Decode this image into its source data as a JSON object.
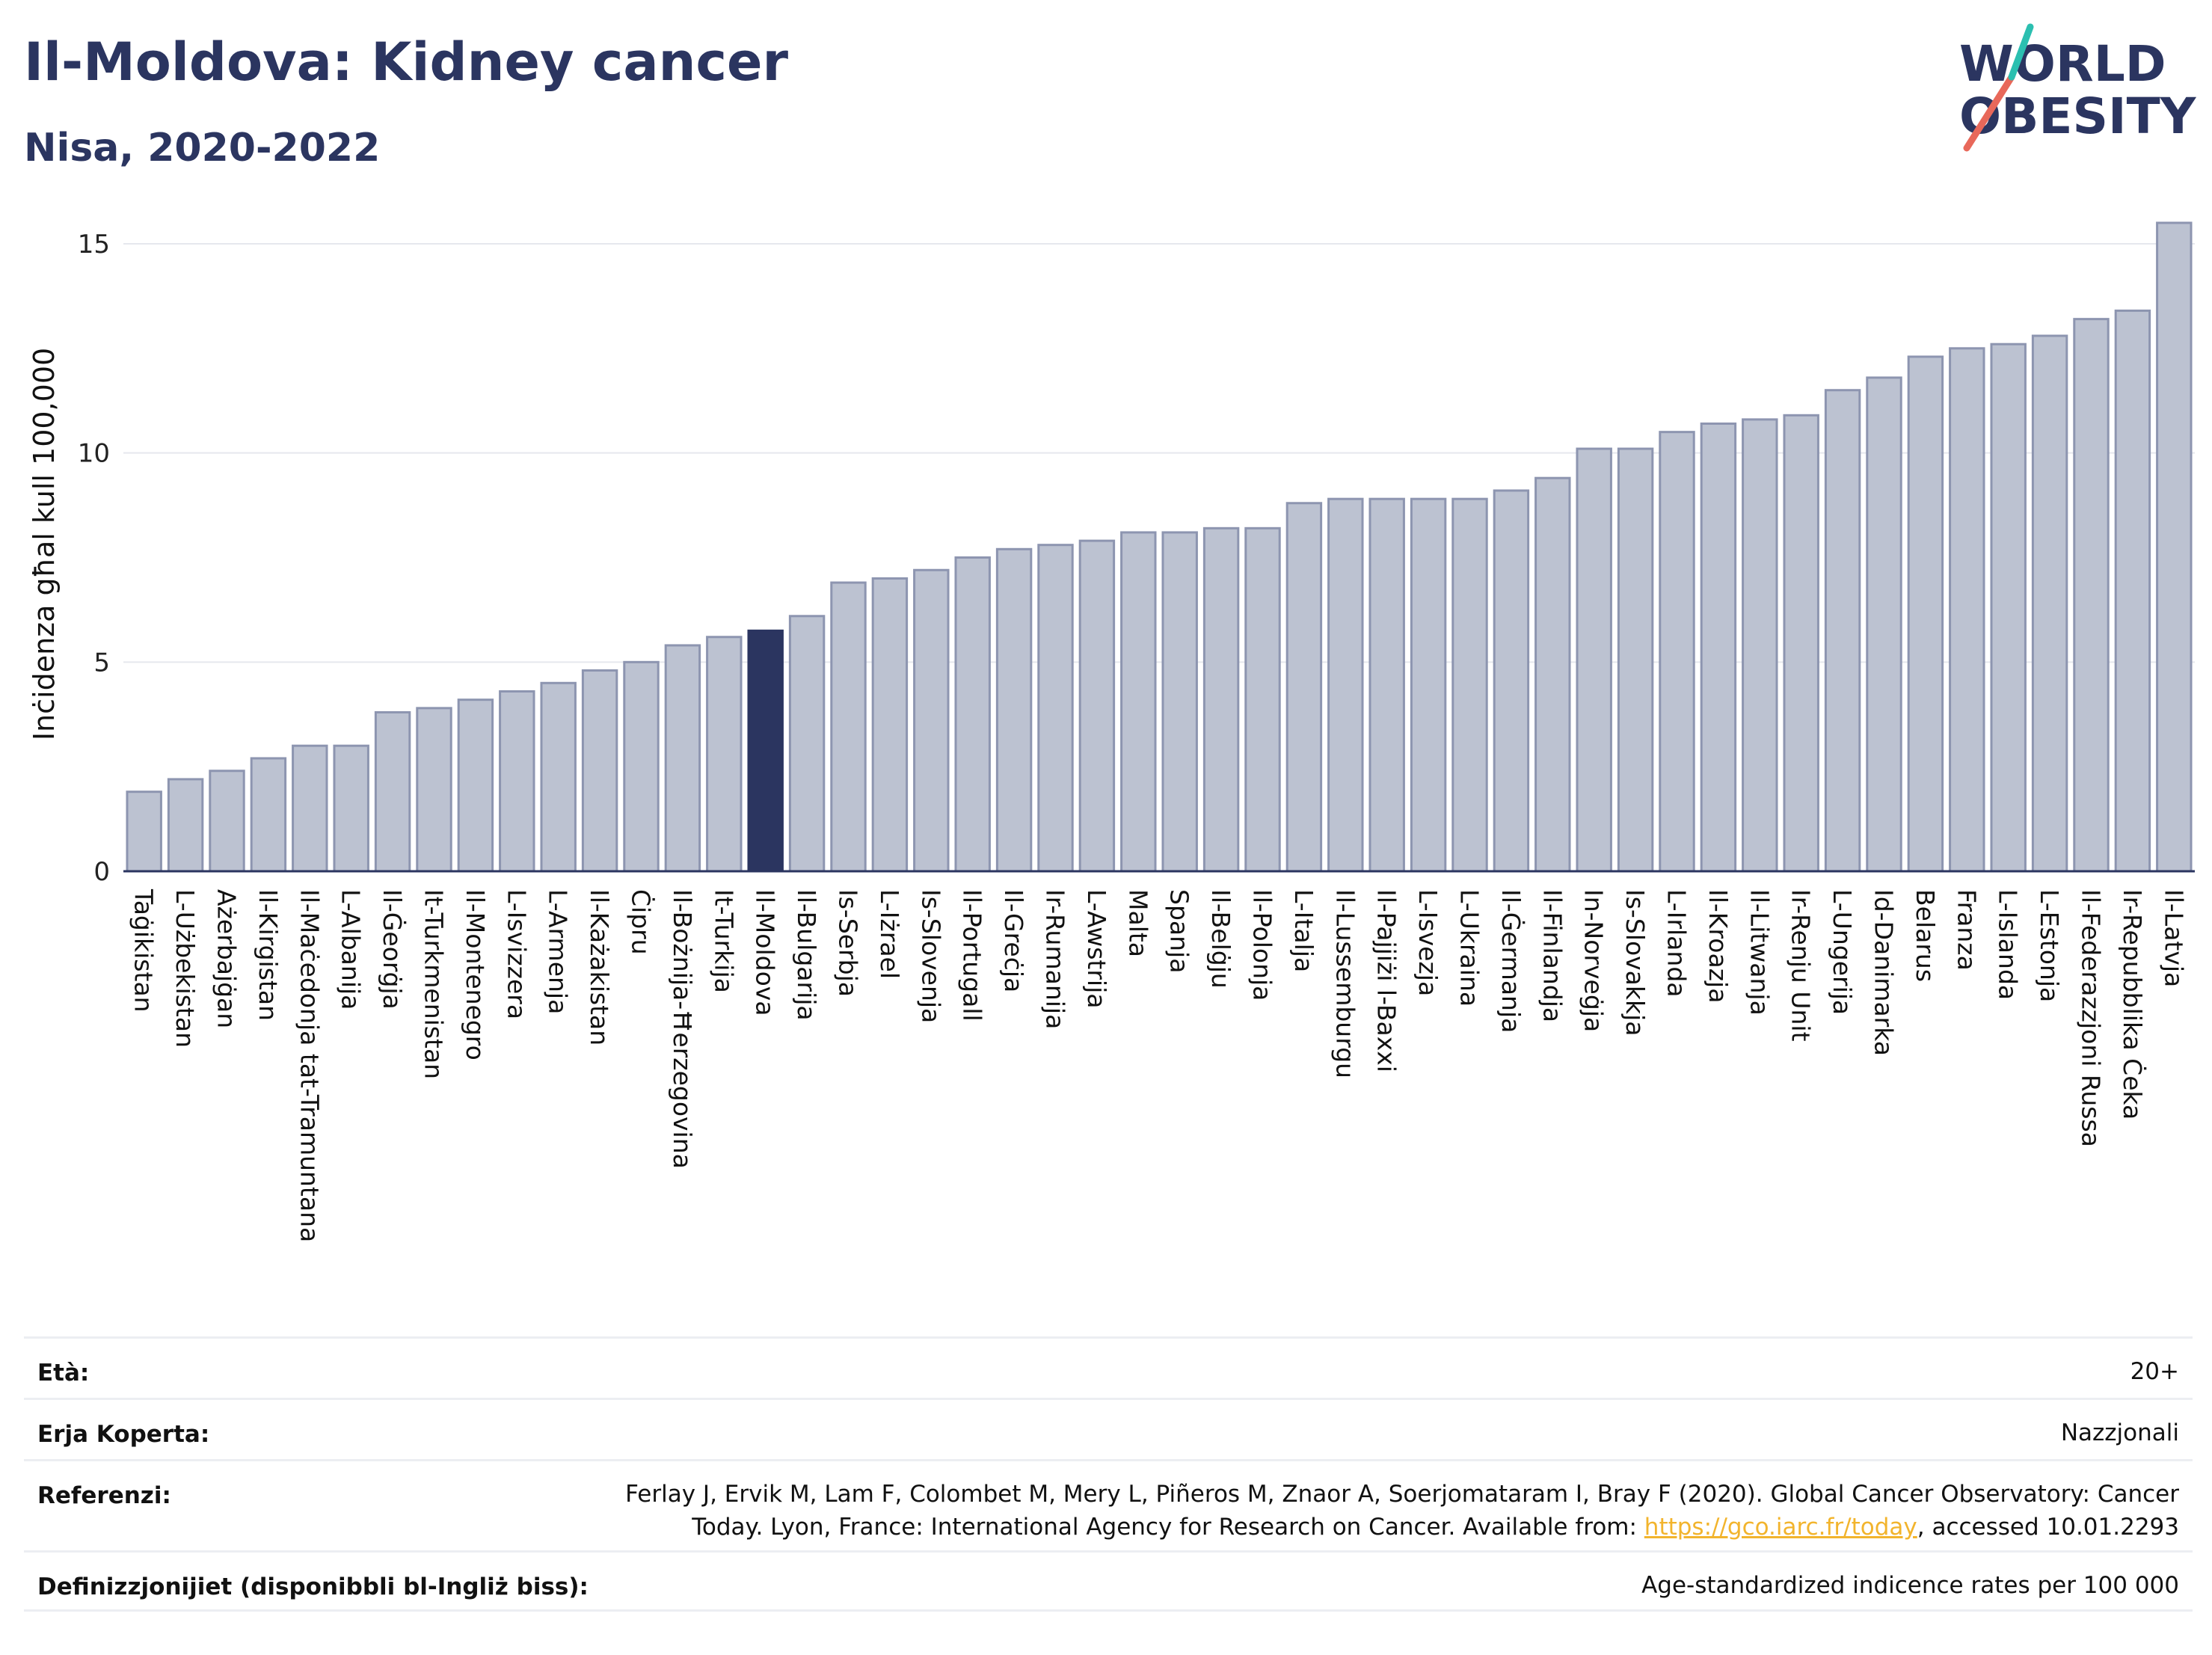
{
  "header": {
    "title": "Il-Moldova: Kidney cancer",
    "subtitle": "Nisa, 2020-2022"
  },
  "logo": {
    "line1": "WORLD",
    "line2": "OBESITY",
    "accent_colors": [
      "#2bbfb0",
      "#e8685a"
    ]
  },
  "colors": {
    "bar": "#bcc2d1",
    "bar_stroke": "#8d95b0",
    "highlight": "#2b3560",
    "grid": "#e6e8ee"
  },
  "chart_data": {
    "type": "bar",
    "title": "Il-Moldova: Kidney cancer",
    "subtitle": "Nisa, 2020-2022",
    "ylabel": "Inċidenza għal kull 100,000",
    "ylim": [
      0,
      16
    ],
    "yticks": [
      0,
      5,
      10,
      15
    ],
    "grid": true,
    "highlight": "Il-Moldova",
    "categories": [
      "Taġikistan",
      "L-Użbekistan",
      "Ażerbajġan",
      "Il-Kirgistan",
      "Il-Maċedonja tat-Tramuntana",
      "L-Albanija",
      "Il-Ġeorġja",
      "It-Turkmenistan",
      "Il-Montenegro",
      "L-Isvizzera",
      "L-Armenja",
      "Il-Każakistan",
      "Ċipru",
      "Il-Bożnija-Ħerzegovina",
      "It-Turkija",
      "Il-Moldova",
      "Il-Bulgarija",
      "Is-Serbja",
      "L-Iżrael",
      "Is-Slovenja",
      "Il-Portugall",
      "Il-Greċja",
      "Ir-Rumanija",
      "L-Awstrija",
      "Malta",
      "Spanja",
      "Il-Belġju",
      "Il-Polonja",
      "L-Italja",
      "Il-Lussemburgu",
      "Il-Pajjiżi l-Baxxi",
      "L-Isvezja",
      "L-Ukraina",
      "Il-Ġermanja",
      "Il-Finlandja",
      "In-Norveġja",
      "Is-Slovakkja",
      "L-Irlanda",
      "Il-Kroazja",
      "Il-Litwanja",
      "Ir-Renju Unit",
      "L-Ungerija",
      "Id-Danimarka",
      "Belarus",
      "Franza",
      "L-Islanda",
      "L-Estonja",
      "Il-Federazzjoni Russa",
      "Ir-Repubblika Ċeka",
      "Il-Latvja"
    ],
    "values": [
      1.9,
      2.2,
      2.4,
      2.7,
      3.0,
      3.0,
      3.8,
      3.9,
      4.1,
      4.3,
      4.5,
      4.8,
      5.0,
      5.4,
      5.6,
      5.75,
      6.1,
      6.9,
      7.0,
      7.2,
      7.5,
      7.7,
      7.8,
      7.9,
      8.1,
      8.1,
      8.2,
      8.2,
      8.8,
      8.9,
      8.9,
      8.9,
      8.9,
      9.1,
      9.4,
      10.1,
      10.1,
      10.5,
      10.7,
      10.8,
      10.9,
      11.5,
      11.8,
      12.3,
      12.5,
      12.6,
      12.8,
      13.2,
      13.4,
      15.5
    ]
  },
  "meta": {
    "age_label": "Età:",
    "age_value": "20+",
    "coverage_label": "Erja Koperta:",
    "coverage_value": "Nazzjonali",
    "references_label": "Referenzi:",
    "references_line1": "Ferlay J, Ervik M, Lam F, Colombet M, Mery L, Piñeros M, Znaor A, Soerjomataram I, Bray F (2020). Global Cancer Observatory: Cancer",
    "references_line2_pre": "Today. Lyon, France: International Agency for Research on Cancer. Available from: ",
    "references_link": "https://gco.iarc.fr/today",
    "references_line2_post": ", accessed 10.01.2293",
    "definitions_label": "Definizzjonijiet (disponibbli bl-Ingliż biss):",
    "definitions_value": "Age-standardized indicence rates per 100 000"
  }
}
